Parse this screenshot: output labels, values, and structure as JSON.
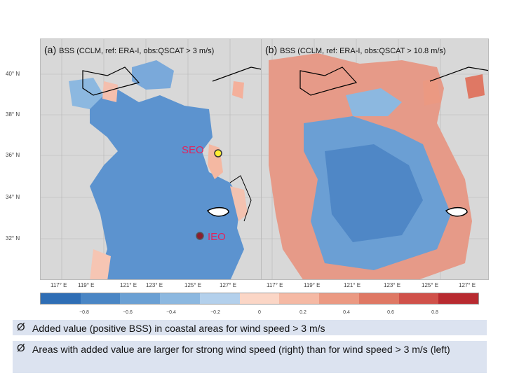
{
  "panels": [
    {
      "tag": "(a)",
      "title": "BSS (CCLM, ref: ERA-I, obs:QSCAT > 3 m/s)"
    },
    {
      "tag": "(b)",
      "title": "BSS (CCLM, ref: ERA-I, obs:QSCAT > 10.8 m/s)"
    }
  ],
  "latitudes": [
    "40° N",
    "38° N",
    "36° N",
    "34° N",
    "32° N"
  ],
  "longitudes": [
    "117° E",
    "119° E",
    "121° E",
    "123° E",
    "125° E",
    "127° E"
  ],
  "stations": {
    "seo": "SEO",
    "ieo": "IEO"
  },
  "colorbar": {
    "colors": [
      "#2f6eb5",
      "#4a86c5",
      "#6aa0d4",
      "#8cb8e0",
      "#b3d0ec",
      "#fbd6c6",
      "#f5b9a4",
      "#eb9982",
      "#df7864",
      "#d0514a",
      "#b82a30"
    ],
    "ticks": [
      "−0.8",
      "−0.6",
      "−0.4",
      "−0.2",
      "0",
      "0.2",
      "0.4",
      "0.6",
      "0.8"
    ]
  },
  "bullets": [
    "Added value (positive BSS) in coastal areas for wind speed > 3 m/s",
    "Areas with added value are larger for strong wind speed (right) than for wind speed > 3 m/s (left)"
  ],
  "arrow_glyph": "Ø"
}
